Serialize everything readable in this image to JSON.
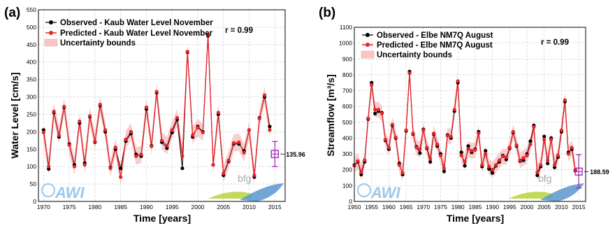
{
  "chart_data": [
    {
      "panel_label": "(a)",
      "type": "line",
      "xlabel": "Time [years]",
      "ylabel": "Water Level [cm/s]",
      "xlim": [
        1969,
        2017
      ],
      "ylim": [
        0,
        550
      ],
      "xticks": [
        1970,
        1975,
        1980,
        1985,
        1990,
        1995,
        2000,
        2005,
        2010,
        2015
      ],
      "yticks": [
        0,
        50,
        100,
        150,
        200,
        250,
        300,
        350,
        400,
        450,
        500,
        550
      ],
      "grid": true,
      "legend_position": "top-left",
      "legend": [
        "Observed - Kaub Water Level November",
        "Predicted - Kaub Water Level November",
        "Uncertainty bounds"
      ],
      "annotation": "r = 0.99",
      "x": [
        1970,
        1971,
        1972,
        1973,
        1974,
        1975,
        1976,
        1977,
        1978,
        1979,
        1980,
        1981,
        1982,
        1983,
        1984,
        1985,
        1986,
        1987,
        1988,
        1989,
        1990,
        1991,
        1992,
        1993,
        1994,
        1995,
        1996,
        1997,
        1998,
        1999,
        2000,
        2001,
        2002,
        2003,
        2004,
        2005,
        2006,
        2007,
        2008,
        2009,
        2010,
        2011,
        2012,
        2013,
        2014
      ],
      "series": [
        {
          "name": "Observed - Kaub Water Level November",
          "color": "#000000",
          "values": [
            205,
            93,
            255,
            185,
            270,
            165,
            105,
            225,
            110,
            243,
            170,
            275,
            200,
            97,
            150,
            95,
            173,
            195,
            135,
            130,
            265,
            160,
            312,
            170,
            153,
            198,
            235,
            95,
            428,
            185,
            215,
            200,
            475,
            105,
            250,
            75,
            115,
            165,
            165,
            145,
            205,
            70,
            240,
            300,
            215
          ]
        },
        {
          "name": "Predicted - Kaub Water Level November",
          "color": "#e8232a",
          "values": [
            198,
            100,
            258,
            190,
            272,
            162,
            100,
            230,
            105,
            245,
            172,
            278,
            205,
            95,
            155,
            70,
            178,
            200,
            130,
            135,
            270,
            158,
            315,
            175,
            160,
            205,
            240,
            130,
            430,
            190,
            212,
            198,
            478,
            105,
            255,
            80,
            118,
            168,
            170,
            140,
            205,
            75,
            238,
            305,
            205
          ]
        }
      ],
      "uncertainty_color": "#f7c6c6",
      "forecast": {
        "year": 2015,
        "value": 135.96,
        "label": "135.96",
        "lower": 100,
        "upper": 172,
        "color": "#a020b0"
      },
      "logo_text": {
        "left": "AWI",
        "right": "bfg"
      }
    },
    {
      "panel_label": "(b)",
      "type": "line",
      "xlabel": "Time [years]",
      "ylabel": "Streamflow [m³/s]",
      "xlim": [
        1950,
        2017
      ],
      "ylim": [
        0,
        1100
      ],
      "xticks": [
        1950,
        1955,
        1960,
        1965,
        1970,
        1975,
        1980,
        1985,
        1990,
        1995,
        2000,
        2005,
        2010,
        2015
      ],
      "yticks": [
        0,
        100,
        200,
        300,
        400,
        500,
        600,
        700,
        800,
        900,
        1000,
        1100
      ],
      "grid": true,
      "legend_position": "top-left",
      "legend": [
        "Observed - Elbe NM7Q August",
        "Predicted - Elbe NM7Q August",
        "Uncertainty bounds"
      ],
      "annotation": "r = 0.99",
      "x": [
        1950,
        1951,
        1952,
        1953,
        1954,
        1955,
        1956,
        1957,
        1958,
        1959,
        1960,
        1961,
        1962,
        1963,
        1964,
        1965,
        1966,
        1967,
        1968,
        1969,
        1970,
        1971,
        1972,
        1973,
        1974,
        1975,
        1976,
        1977,
        1978,
        1979,
        1980,
        1981,
        1982,
        1983,
        1984,
        1985,
        1986,
        1987,
        1988,
        1989,
        1990,
        1991,
        1992,
        1993,
        1994,
        1995,
        1996,
        1997,
        1998,
        1999,
        2000,
        2001,
        2002,
        2003,
        2004,
        2005,
        2006,
        2007,
        2008,
        2009,
        2010,
        2011,
        2012,
        2013,
        2014
      ],
      "series": [
        {
          "name": "Observed - Elbe NM7Q August",
          "color": "#000000",
          "values": [
            230,
            250,
            170,
            250,
            520,
            750,
            555,
            570,
            560,
            385,
            330,
            480,
            400,
            240,
            170,
            445,
            820,
            425,
            345,
            305,
            455,
            335,
            250,
            425,
            350,
            300,
            190,
            420,
            400,
            570,
            750,
            310,
            225,
            350,
            310,
            330,
            440,
            220,
            320,
            205,
            180,
            225,
            250,
            290,
            265,
            335,
            435,
            350,
            255,
            260,
            300,
            380,
            480,
            165,
            220,
            410,
            240,
            400,
            215,
            280,
            440,
            630,
            310,
            330,
            195
          ]
        },
        {
          "name": "Predicted - Elbe NM7Q August",
          "color": "#e8232a",
          "values": [
            225,
            255,
            185,
            260,
            525,
            735,
            580,
            580,
            555,
            390,
            340,
            485,
            405,
            230,
            180,
            450,
            810,
            430,
            340,
            330,
            450,
            340,
            270,
            430,
            360,
            290,
            210,
            415,
            410,
            580,
            760,
            290,
            250,
            330,
            320,
            325,
            430,
            230,
            300,
            220,
            200,
            230,
            260,
            285,
            280,
            340,
            440,
            355,
            260,
            275,
            290,
            360,
            470,
            185,
            230,
            390,
            260,
            390,
            230,
            290,
            450,
            640,
            300,
            340,
            200
          ]
        }
      ],
      "uncertainty_color": "#f7c6c6",
      "forecast": {
        "year": 2015,
        "value": 188.59,
        "label": "188.59",
        "lower": 85,
        "upper": 295,
        "color": "#a020b0"
      },
      "logo_text": {
        "left": "AWI",
        "right": "bfg"
      }
    }
  ]
}
